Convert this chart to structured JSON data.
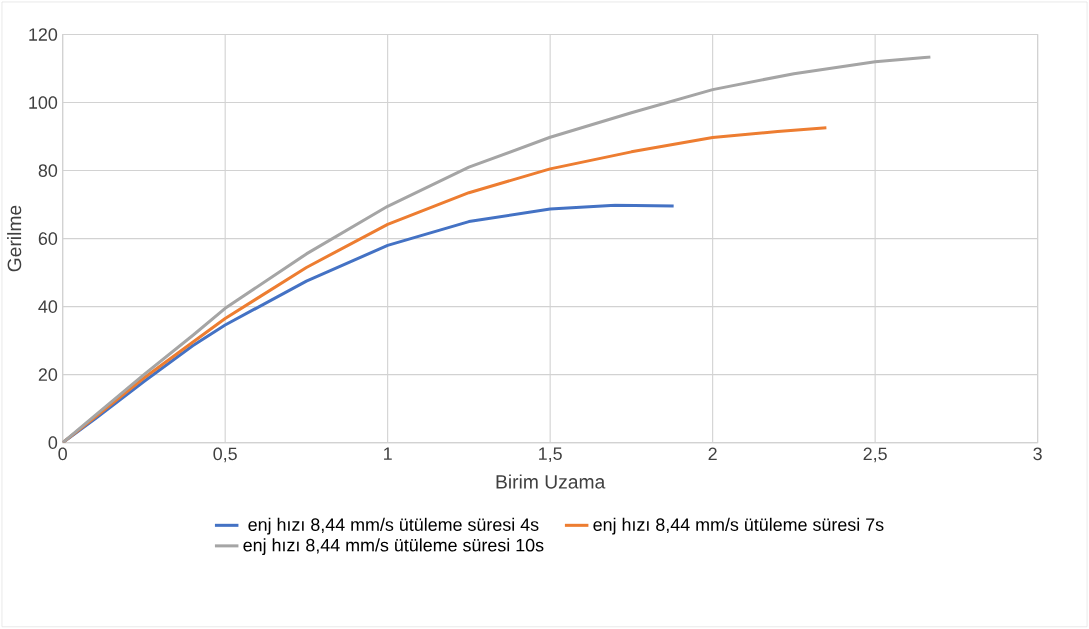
{
  "chart_data": {
    "type": "line",
    "xlabel": "Birim Uzama",
    "ylabel": "Gerilme",
    "xlim": [
      0,
      3
    ],
    "xticks": [
      0,
      {
        "value": 0.5,
        "label": "0,5"
      },
      1,
      {
        "value": 1.5,
        "label": "1,5"
      },
      2,
      {
        "value": 2.5,
        "label": "2,5"
      },
      3
    ],
    "ylim": [
      0,
      120
    ],
    "yticks": [
      0,
      20,
      40,
      60,
      80,
      100,
      120
    ],
    "grid": true,
    "legend": "bottom",
    "marker": "none",
    "line_style": "solid",
    "series": [
      {
        "name": "enj hızı 8,44 mm/s ütüleme süresi 4s",
        "color": "#4472c4",
        "x": [
          0,
          0.1,
          0.25,
          0.4,
          0.5,
          0.75,
          1,
          1.25,
          1.5,
          1.7,
          1.88
        ],
        "values": [
          0,
          7,
          18,
          28.5,
          34.6,
          47.5,
          58,
          65,
          68.7,
          69.8,
          69.6
        ]
      },
      {
        "name": "enj hızı 8,44 mm/s ütüleme süresi 7s",
        "color": "#ed7d31",
        "x": [
          0,
          0.1,
          0.25,
          0.4,
          0.5,
          0.75,
          1,
          1.25,
          1.5,
          1.75,
          2,
          2.2,
          2.35
        ],
        "values": [
          0,
          7.5,
          19,
          29.5,
          36.5,
          51.5,
          64.2,
          73.5,
          80.5,
          85.5,
          89.7,
          91.5,
          92.6
        ]
      },
      {
        "name": "enj hızı 8,44 mm/s ütüleme süresi 10s",
        "color": "#a5a5a5",
        "x": [
          0,
          0.1,
          0.25,
          0.4,
          0.5,
          0.75,
          1,
          1.25,
          1.5,
          1.75,
          2,
          2.25,
          2.5,
          2.67
        ],
        "values": [
          0,
          8,
          20,
          31.5,
          39.5,
          55.5,
          69.5,
          81,
          89.8,
          97,
          103.8,
          108.5,
          112,
          113.4
        ]
      }
    ]
  }
}
